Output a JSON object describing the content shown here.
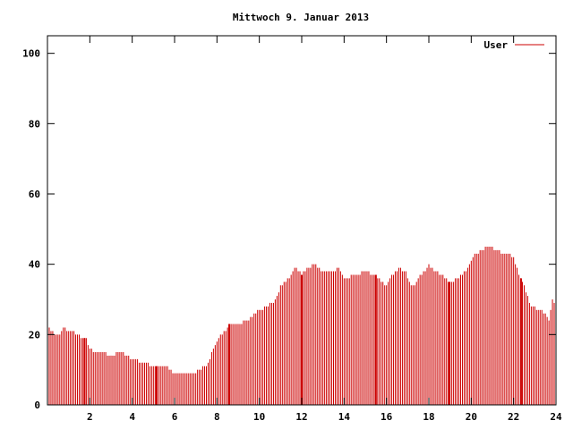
{
  "chart_data": {
    "type": "bar",
    "title": "Mittwoch 9. Januar 2013",
    "xlabel": "",
    "ylabel": "",
    "xlim": [
      0,
      24
    ],
    "ylim": [
      0,
      105
    ],
    "x_ticks": [
      2,
      4,
      6,
      8,
      10,
      12,
      14,
      16,
      18,
      20,
      22,
      24
    ],
    "y_ticks": [
      0,
      20,
      40,
      60,
      80,
      100
    ],
    "grid": false,
    "legend_position": "top-right",
    "series": [
      {
        "name": "User",
        "color": "#cc0000",
        "anchors": [
          [
            0.0,
            23
          ],
          [
            0.1,
            22
          ],
          [
            0.3,
            20
          ],
          [
            0.6,
            20
          ],
          [
            0.8,
            22
          ],
          [
            1.0,
            21
          ],
          [
            1.2,
            21
          ],
          [
            1.4,
            20
          ],
          [
            1.6,
            19
          ],
          [
            1.8,
            19
          ],
          [
            2.0,
            16
          ],
          [
            2.2,
            15
          ],
          [
            2.6,
            15
          ],
          [
            3.0,
            14
          ],
          [
            3.4,
            15
          ],
          [
            3.8,
            14
          ],
          [
            4.0,
            13
          ],
          [
            4.6,
            12
          ],
          [
            5.0,
            11
          ],
          [
            5.6,
            11
          ],
          [
            5.8,
            10
          ],
          [
            6.0,
            9
          ],
          [
            6.8,
            9
          ],
          [
            7.2,
            10
          ],
          [
            7.6,
            12
          ],
          [
            7.8,
            16
          ],
          [
            8.0,
            18
          ],
          [
            8.2,
            20
          ],
          [
            8.5,
            22
          ],
          [
            8.6,
            23
          ],
          [
            9.0,
            23
          ],
          [
            9.4,
            24
          ],
          [
            9.6,
            25
          ],
          [
            9.8,
            26
          ],
          [
            10.0,
            27
          ],
          [
            10.4,
            28
          ],
          [
            10.8,
            30
          ],
          [
            11.0,
            34
          ],
          [
            11.2,
            35
          ],
          [
            11.5,
            37
          ],
          [
            11.7,
            39
          ],
          [
            12.0,
            37
          ],
          [
            12.3,
            39
          ],
          [
            12.6,
            40
          ],
          [
            13.0,
            38
          ],
          [
            13.4,
            38
          ],
          [
            13.8,
            39
          ],
          [
            14.0,
            36
          ],
          [
            14.6,
            37
          ],
          [
            15.0,
            38
          ],
          [
            15.5,
            37
          ],
          [
            15.8,
            35
          ],
          [
            16.0,
            34
          ],
          [
            16.3,
            37
          ],
          [
            16.6,
            39
          ],
          [
            16.9,
            38
          ],
          [
            17.1,
            35
          ],
          [
            17.2,
            33
          ],
          [
            17.5,
            36
          ],
          [
            17.8,
            38
          ],
          [
            18.0,
            40
          ],
          [
            18.3,
            38
          ],
          [
            18.6,
            37
          ],
          [
            19.0,
            35
          ],
          [
            19.4,
            36
          ],
          [
            19.7,
            38
          ],
          [
            20.0,
            41
          ],
          [
            20.2,
            43
          ],
          [
            20.5,
            44
          ],
          [
            20.8,
            45
          ],
          [
            21.2,
            44
          ],
          [
            21.5,
            43
          ],
          [
            21.8,
            43
          ],
          [
            22.0,
            42
          ],
          [
            22.2,
            38
          ],
          [
            22.4,
            35
          ],
          [
            22.6,
            32
          ],
          [
            22.8,
            28
          ],
          [
            23.2,
            27
          ],
          [
            23.5,
            26
          ],
          [
            23.7,
            24
          ],
          [
            23.8,
            30
          ],
          [
            24.0,
            28
          ]
        ],
        "spikes": [
          1.75,
          5.15,
          8.58,
          12.0,
          15.5,
          18.95,
          22.35
        ]
      }
    ]
  }
}
